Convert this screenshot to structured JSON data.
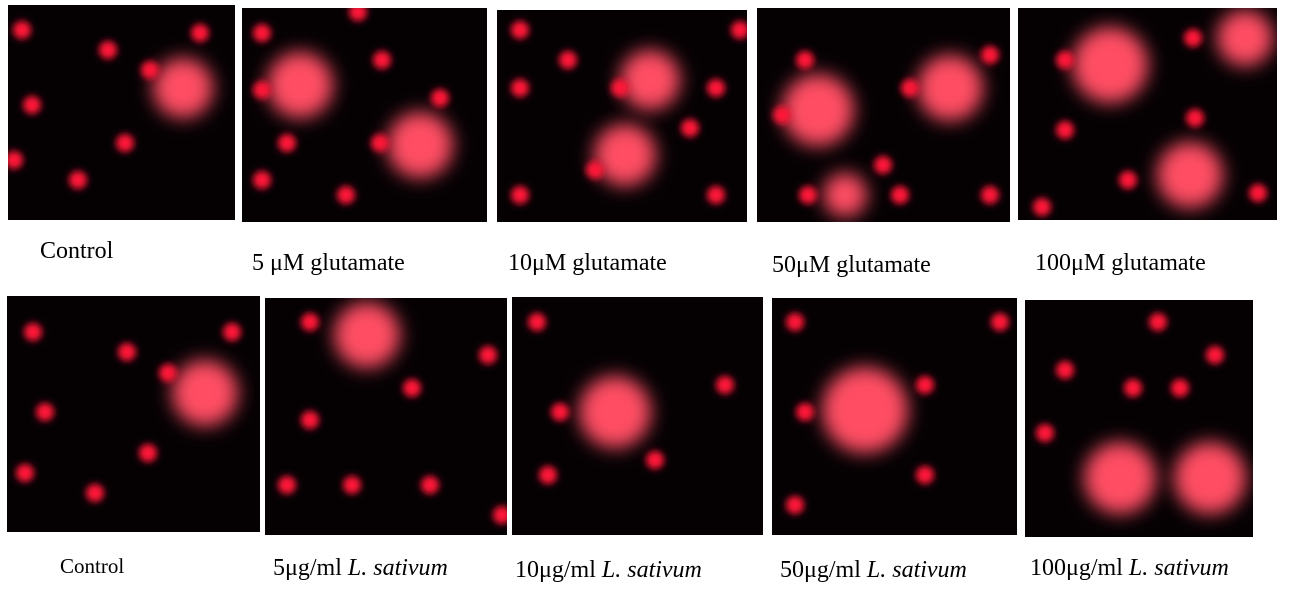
{
  "rows": [
    {
      "panels": [
        {
          "label": "Control"
        },
        {
          "label": "5 μM glutamate"
        },
        {
          "label": "10μM glutamate"
        },
        {
          "label": "50μM glutamate"
        },
        {
          "label": "100μM glutamate"
        }
      ]
    },
    {
      "panels": [
        {
          "label": "Control"
        },
        {
          "label": "5μg/ml",
          "species": "L. sativum"
        },
        {
          "label": "10μg/ml",
          "species": "L. sativum"
        },
        {
          "label": "50μg/ml",
          "species": "L. sativum"
        },
        {
          "label": "100μg/ml",
          "species": "L. sativum"
        }
      ]
    }
  ]
}
